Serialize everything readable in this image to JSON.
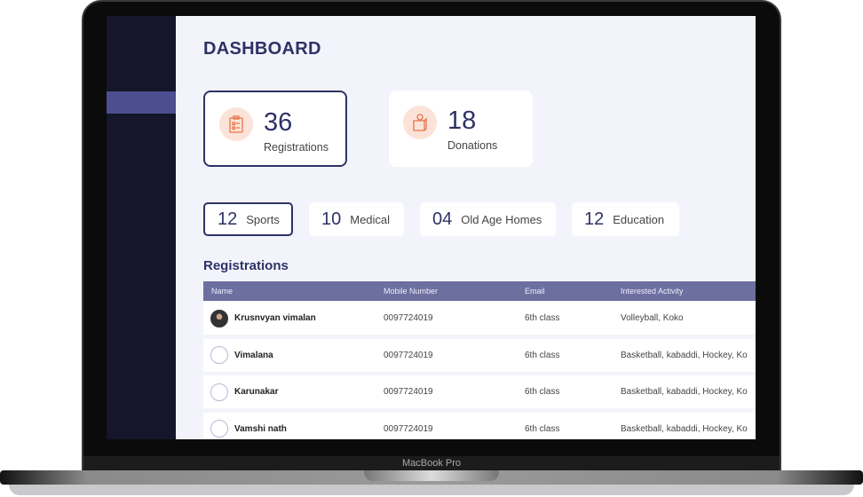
{
  "device": {
    "label": "MacBook Pro"
  },
  "header": {
    "title": "DASHBOARD"
  },
  "stats": [
    {
      "value": "36",
      "label": "Registrations",
      "icon": "clipboard-icon",
      "active": true
    },
    {
      "value": "18",
      "label": "Donations",
      "icon": "donation-box-icon",
      "active": false
    }
  ],
  "categories": [
    {
      "value": "12",
      "label": "Sports",
      "active": true
    },
    {
      "value": "10",
      "label": "Medical"
    },
    {
      "value": "04",
      "label": "Old Age Homes"
    },
    {
      "value": "12",
      "label": "Education"
    }
  ],
  "registrations": {
    "title": "Registrations",
    "columns": [
      "Name",
      "Mobile Number",
      "Email",
      "Interested Activity"
    ],
    "rows": [
      {
        "name": "Krusnvyan vimalan",
        "mobile": "0097724019",
        "email": "6th class",
        "activity": "Volleyball, Koko",
        "avatar": "photo"
      },
      {
        "name": "Vimalana",
        "mobile": "0097724019",
        "email": "6th class",
        "activity": "Basketball, kabaddi, Hockey, Ko",
        "avatar": "empty"
      },
      {
        "name": "Karunakar",
        "mobile": "0097724019",
        "email": "6th class",
        "activity": "Basketball, kabaddi, Hockey, Ko",
        "avatar": "empty"
      },
      {
        "name": "Vamshi nath",
        "mobile": "0097724019",
        "email": "6th class",
        "activity": "Basketball, kabaddi, Hockey, Ko",
        "avatar": "empty"
      }
    ]
  },
  "colors": {
    "primary": "#2e3266",
    "sidebar": "#15152b",
    "sidebar_active": "#4b4f8f",
    "table_header": "#6d6f9f",
    "icon_accent": "#e8764a",
    "icon_bg": "#fbe3d9"
  }
}
